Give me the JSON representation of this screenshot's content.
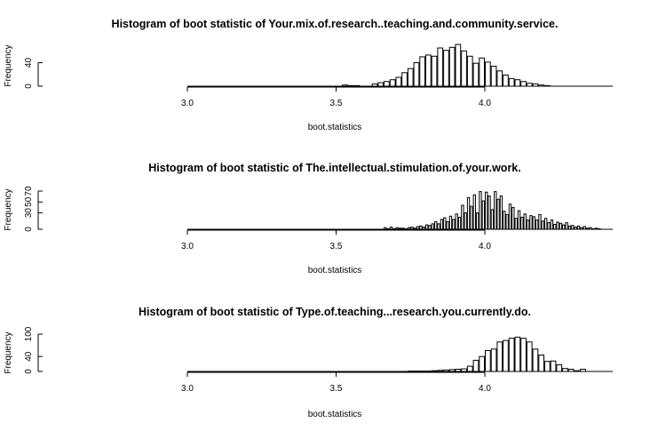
{
  "chart_data": [
    {
      "type": "bar",
      "title": "Histogram of boot statistic of  Your.mix.of.research..teaching.and.community.service.",
      "xlabel": "boot.statistics",
      "ylabel": "Frequency",
      "xlim": [
        3.0,
        4.43
      ],
      "ylim": [
        0,
        65
      ],
      "x_ticks": [
        "3.0",
        "3.5",
        "4.0"
      ],
      "y_ticks": [
        "0",
        "40"
      ],
      "bin_width": 0.02,
      "x": [
        3.53,
        3.55,
        3.57,
        3.59,
        3.61,
        3.63,
        3.65,
        3.67,
        3.69,
        3.71,
        3.73,
        3.75,
        3.77,
        3.79,
        3.81,
        3.83,
        3.85,
        3.87,
        3.89,
        3.91,
        3.93,
        3.95,
        3.97,
        3.99,
        4.01,
        4.03,
        4.05,
        4.07,
        4.09,
        4.11,
        4.13,
        4.15,
        4.17,
        4.19,
        4.21
      ],
      "values": [
        2,
        1,
        1,
        0,
        0,
        4,
        6,
        8,
        11,
        15,
        23,
        30,
        40,
        50,
        53,
        51,
        65,
        61,
        66,
        71,
        60,
        51,
        39,
        48,
        41,
        34,
        26,
        19,
        13,
        11,
        8,
        5,
        4,
        2,
        1
      ]
    },
    {
      "type": "bar",
      "title": "Histogram of boot statistic of  The.intellectual.stimulation.of.your.work.",
      "xlabel": "boot.statistics",
      "ylabel": "Frequency",
      "xlim": [
        3.0,
        4.43
      ],
      "ylim": [
        0,
        70
      ],
      "x_ticks": [
        "3.0",
        "3.5",
        "4.0"
      ],
      "y_ticks": [
        "0",
        "30",
        "50",
        "70"
      ],
      "bin_width": 0.01,
      "x": [
        3.665,
        3.675,
        3.685,
        3.695,
        3.705,
        3.715,
        3.725,
        3.735,
        3.745,
        3.755,
        3.765,
        3.775,
        3.785,
        3.795,
        3.805,
        3.815,
        3.825,
        3.835,
        3.845,
        3.855,
        3.865,
        3.875,
        3.885,
        3.895,
        3.905,
        3.915,
        3.925,
        3.935,
        3.945,
        3.955,
        3.965,
        3.975,
        3.985,
        3.995,
        4.005,
        4.015,
        4.025,
        4.035,
        4.045,
        4.055,
        4.065,
        4.075,
        4.085,
        4.095,
        4.105,
        4.115,
        4.125,
        4.135,
        4.145,
        4.155,
        4.165,
        4.175,
        4.185,
        4.195,
        4.205,
        4.215,
        4.225,
        4.235,
        4.245,
        4.255,
        4.265,
        4.275,
        4.285,
        4.295,
        4.305,
        4.315,
        4.325,
        4.335,
        4.345,
        4.355,
        4.365,
        4.375,
        4.385
      ],
      "values": [
        3,
        1,
        4,
        1,
        3,
        2,
        2,
        1,
        3,
        4,
        2,
        5,
        6,
        4,
        8,
        7,
        10,
        14,
        10,
        18,
        21,
        14,
        24,
        18,
        28,
        22,
        44,
        30,
        58,
        42,
        63,
        30,
        69,
        52,
        68,
        61,
        36,
        69,
        55,
        61,
        33,
        27,
        46,
        40,
        20,
        34,
        22,
        28,
        17,
        25,
        23,
        17,
        27,
        15,
        20,
        12,
        17,
        9,
        13,
        11,
        8,
        12,
        6,
        7,
        4,
        6,
        3,
        5,
        2,
        3,
        1,
        2,
        1
      ]
    },
    {
      "type": "bar",
      "title": "Histogram of boot statistic of  Type.of.teaching...research.you.currently.do.",
      "xlabel": "boot.statistics",
      "ylabel": "Frequency",
      "xlim": [
        3.0,
        4.43
      ],
      "ylim": [
        0,
        100
      ],
      "x_ticks": [
        "3.0",
        "3.5",
        "4.0"
      ],
      "y_ticks": [
        "0",
        "40",
        "100"
      ],
      "bin_width": 0.02,
      "x": [
        3.75,
        3.77,
        3.79,
        3.81,
        3.83,
        3.85,
        3.87,
        3.89,
        3.91,
        3.93,
        3.95,
        3.97,
        3.99,
        4.01,
        4.03,
        4.05,
        4.07,
        4.09,
        4.11,
        4.13,
        4.15,
        4.17,
        4.19,
        4.21,
        4.23,
        4.25,
        4.27,
        4.29,
        4.31,
        4.33,
        4.35,
        4.37,
        4.39
      ],
      "values": [
        1,
        1,
        1,
        1,
        2,
        3,
        4,
        5,
        6,
        7,
        14,
        30,
        40,
        56,
        60,
        79,
        83,
        89,
        92,
        89,
        79,
        60,
        44,
        27,
        28,
        18,
        8,
        6,
        2,
        6,
        0,
        0,
        0
      ]
    }
  ]
}
